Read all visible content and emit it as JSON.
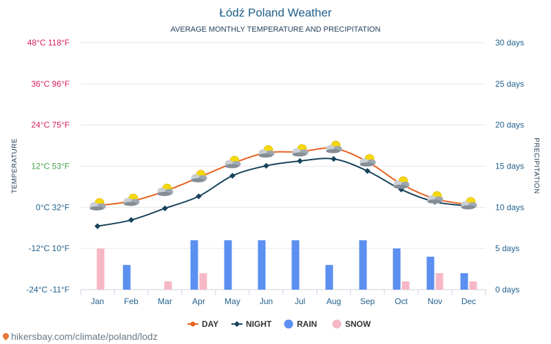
{
  "chart_data": {
    "type": "line",
    "title": "Łódź Poland Weather",
    "subtitle": "AVERAGE MONTHLY TEMPERATURE AND PRECIPITATION",
    "ylabel": "TEMPERATURE",
    "y2label": "PRECIPITATION",
    "categories": [
      "Jan",
      "Feb",
      "Mar",
      "Apr",
      "May",
      "Jun",
      "Jul",
      "Aug",
      "Sep",
      "Oct",
      "Nov",
      "Dec"
    ],
    "series": [
      {
        "name": "DAY",
        "kind": "line",
        "axis": "temperature",
        "color": "#e8601c",
        "values": [
          0.5,
          1.8,
          4.7,
          8.7,
          12.8,
          15.9,
          16.2,
          17.2,
          13.3,
          6.8,
          2.5,
          0.8
        ]
      },
      {
        "name": "NIGHT",
        "kind": "line",
        "axis": "temperature",
        "color": "#16425b",
        "values": [
          -5.5,
          -3.7,
          -0.3,
          3.2,
          9.2,
          12.1,
          13.5,
          14.1,
          10.6,
          5.2,
          1.6,
          0.4
        ]
      },
      {
        "name": "RAIN",
        "kind": "bar",
        "axis": "precipitation",
        "color": "#5b8ff0",
        "values": [
          0,
          3,
          0,
          6,
          6,
          6,
          6,
          3,
          6,
          5,
          4,
          2
        ]
      },
      {
        "name": "SNOW",
        "kind": "bar",
        "axis": "precipitation",
        "color": "#f7b8c6",
        "values": [
          5,
          0,
          1,
          2,
          0,
          0,
          0,
          0,
          0,
          1,
          2,
          1
        ]
      }
    ],
    "ylim": [
      -24,
      48
    ],
    "y2lim": [
      0,
      30
    ],
    "y_ticks": [
      {
        "value": 48,
        "label": "48°C 118°F",
        "color": "#d81b60"
      },
      {
        "value": 36,
        "label": "36°C 96°F",
        "color": "#d81b60"
      },
      {
        "value": 24,
        "label": "24°C 75°F",
        "color": "#d81b60"
      },
      {
        "value": 12,
        "label": "12°C 53°F",
        "color": "#43a047"
      },
      {
        "value": 0,
        "label": "0°C 32°F",
        "color": "#1f5f8b"
      },
      {
        "value": -12,
        "label": "-12°C 10°F",
        "color": "#1f5f8b"
      },
      {
        "value": -24,
        "label": "-24°C -11°F",
        "color": "#1f5f8b"
      }
    ],
    "y2_ticks": [
      {
        "value": 30,
        "label": "30 days"
      },
      {
        "value": 25,
        "label": "25 days"
      },
      {
        "value": 20,
        "label": "20 days"
      },
      {
        "value": 15,
        "label": "15 days"
      },
      {
        "value": 10,
        "label": "10 days"
      },
      {
        "value": 5,
        "label": "5 days"
      },
      {
        "value": 0,
        "label": "0 days"
      }
    ],
    "grid": true,
    "legend_position": "bottom-center",
    "weather_icon": "partly-cloudy-icon"
  },
  "source": "hikersbay.com/climate/poland/lodz"
}
